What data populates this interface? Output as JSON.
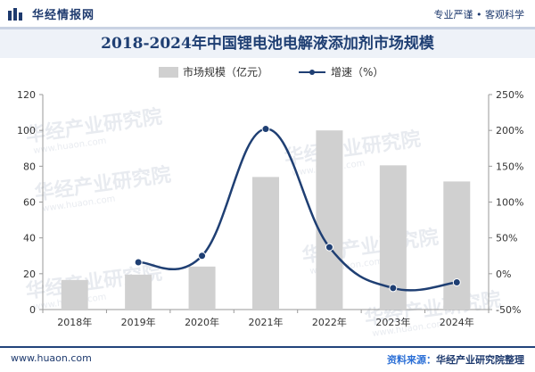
{
  "header": {
    "brand": "华经情报网",
    "slogan": "专业严谨 • 客观科学"
  },
  "title": "2018-2024年中国锂电池电解液添加剂市场规模",
  "footer": {
    "url": "www.huaon.com",
    "source_label": "资料来源：",
    "source": "华经产业研究院整理"
  },
  "watermark": {
    "text": "华经产业研究院",
    "sub": "www.huaon.com"
  },
  "colors": {
    "bar": "#d0d0d0",
    "line": "#1f3f73",
    "title": "#1f3f73"
  },
  "chart_data": {
    "type": "bar",
    "categories": [
      "2018年",
      "2019年",
      "2020年",
      "2021年",
      "2022年",
      "2023年",
      "2024年"
    ],
    "series": [
      {
        "name": "市场规模（亿元）",
        "type": "bar",
        "axis": "left",
        "values": [
          16.5,
          19.5,
          24,
          74,
          100,
          80.5,
          71.5
        ]
      },
      {
        "name": "增速（%）",
        "type": "line",
        "axis": "right",
        "values": [
          null,
          16,
          25,
          202,
          37,
          -20,
          -12
        ]
      }
    ],
    "y_left": {
      "min": 0,
      "max": 120,
      "ticks": [
        "0",
        "20",
        "40",
        "60",
        "80",
        "100",
        "120"
      ]
    },
    "y_right": {
      "min": -50,
      "max": 250,
      "ticks": [
        "-50%",
        "0%",
        "50%",
        "100%",
        "150%",
        "200%",
        "250%"
      ]
    },
    "legend_position": "top-center",
    "grid": false
  }
}
